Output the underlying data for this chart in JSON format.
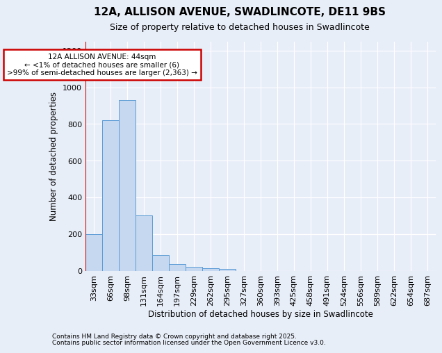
{
  "title1": "12A, ALLISON AVENUE, SWADLINCOTE, DE11 9BS",
  "title2": "Size of property relative to detached houses in Swadlincote",
  "xlabel": "Distribution of detached houses by size in Swadlincote",
  "ylabel": "Number of detached properties",
  "categories": [
    "33sqm",
    "66sqm",
    "98sqm",
    "131sqm",
    "164sqm",
    "197sqm",
    "229sqm",
    "262sqm",
    "295sqm",
    "327sqm",
    "360sqm",
    "393sqm",
    "425sqm",
    "458sqm",
    "491sqm",
    "524sqm",
    "556sqm",
    "589sqm",
    "622sqm",
    "654sqm",
    "687sqm"
  ],
  "values": [
    200,
    820,
    930,
    300,
    85,
    35,
    20,
    15,
    10,
    0,
    0,
    0,
    0,
    0,
    0,
    0,
    0,
    0,
    0,
    0,
    0
  ],
  "bar_color": "#c5d8f0",
  "bar_edge_color": "#5b9bd5",
  "annotation_text": "12A ALLISON AVENUE: 44sqm\n← <1% of detached houses are smaller (6)\n>99% of semi-detached houses are larger (2,363) →",
  "annotation_box_color": "white",
  "annotation_box_edge_color": "#cc0000",
  "red_line_color": "#cc0000",
  "ylim": [
    0,
    1250
  ],
  "yticks": [
    0,
    200,
    400,
    600,
    800,
    1000,
    1200
  ],
  "background_color": "#e8eef8",
  "grid_color": "white",
  "footer1": "Contains HM Land Registry data © Crown copyright and database right 2025.",
  "footer2": "Contains public sector information licensed under the Open Government Licence v3.0."
}
